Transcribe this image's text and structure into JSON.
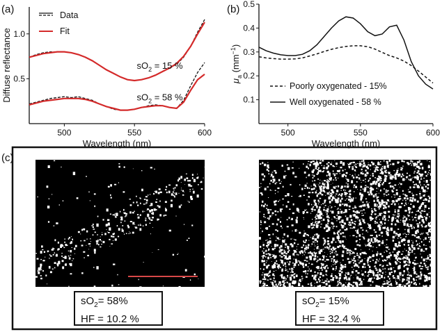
{
  "panels": {
    "a": "(a)",
    "b": "(b)",
    "c": "(c)"
  },
  "chart_data": [
    {
      "type": "line",
      "panel": "(a)",
      "xlabel": "Wavelength (nm)",
      "ylabel": "Diffuse reflectance",
      "xlim": [
        475,
        600
      ],
      "ylim": [
        0,
        1.3
      ],
      "xticks": [
        500,
        550,
        600
      ],
      "yticks": [
        0.5,
        1.0
      ],
      "ytick_labels": [
        "0.5",
        "1.0"
      ],
      "legend": [
        "Data",
        "Fit"
      ],
      "legend_position": "top-left",
      "annotations": [
        {
          "text": "sO",
          "sub": "2",
          "rest": " = 15 %",
          "at_x": 568,
          "at_y": 0.61
        },
        {
          "text": "sO",
          "sub": "2",
          "rest": " = 58 %",
          "at_x": 568,
          "at_y": 0.26
        }
      ],
      "colors": {
        "data": "#111111",
        "fit": "#d42a2a"
      },
      "series": [
        {
          "name": "Data",
          "style": "dashed",
          "x": [
            475,
            480,
            485,
            490,
            495,
            500,
            505,
            510,
            515,
            520,
            525,
            530,
            535,
            540,
            545,
            550,
            555,
            560,
            565,
            570,
            575,
            580,
            585,
            590,
            595,
            600
          ],
          "y": [
            0.74,
            0.77,
            0.79,
            0.8,
            0.8,
            0.8,
            0.79,
            0.77,
            0.74,
            0.7,
            0.65,
            0.6,
            0.56,
            0.52,
            0.49,
            0.48,
            0.49,
            0.51,
            0.54,
            0.58,
            0.62,
            0.66,
            0.74,
            0.86,
            1.02,
            1.16
          ]
        },
        {
          "name": "Fit",
          "style": "solid",
          "x": [
            475,
            480,
            485,
            490,
            495,
            500,
            505,
            510,
            515,
            520,
            525,
            530,
            535,
            540,
            545,
            550,
            555,
            560,
            565,
            570,
            575,
            580,
            585,
            590,
            595,
            600
          ],
          "y": [
            0.74,
            0.76,
            0.78,
            0.79,
            0.8,
            0.8,
            0.79,
            0.77,
            0.74,
            0.7,
            0.65,
            0.6,
            0.56,
            0.52,
            0.49,
            0.48,
            0.49,
            0.51,
            0.54,
            0.58,
            0.62,
            0.67,
            0.75,
            0.86,
            1.0,
            1.13
          ]
        },
        {
          "name": "Data",
          "style": "dashed",
          "x": [
            475,
            480,
            485,
            490,
            495,
            500,
            505,
            510,
            515,
            520,
            525,
            530,
            535,
            540,
            545,
            550,
            555,
            560,
            565,
            570,
            575,
            580,
            585,
            590,
            595,
            600
          ],
          "y": [
            0.22,
            0.24,
            0.26,
            0.28,
            0.29,
            0.3,
            0.29,
            0.3,
            0.28,
            0.26,
            0.22,
            0.19,
            0.16,
            0.15,
            0.15,
            0.16,
            0.18,
            0.2,
            0.21,
            0.2,
            0.18,
            0.17,
            0.26,
            0.42,
            0.57,
            0.68
          ]
        },
        {
          "name": "Fit",
          "style": "solid",
          "x": [
            475,
            480,
            485,
            490,
            495,
            500,
            505,
            510,
            515,
            520,
            525,
            530,
            535,
            540,
            545,
            550,
            555,
            560,
            565,
            570,
            575,
            580,
            585,
            590,
            595,
            600
          ],
          "y": [
            0.21,
            0.23,
            0.25,
            0.26,
            0.27,
            0.28,
            0.28,
            0.28,
            0.27,
            0.25,
            0.22,
            0.19,
            0.17,
            0.15,
            0.15,
            0.16,
            0.18,
            0.19,
            0.2,
            0.2,
            0.18,
            0.17,
            0.24,
            0.37,
            0.49,
            0.55
          ]
        }
      ]
    },
    {
      "type": "line",
      "panel": "(b)",
      "xlabel": "Wavelength (nm)",
      "ylabel": "μ",
      "ylabel_sub": "a",
      "ylabel_rest": " (mm",
      "ylabel_sup": "−1",
      "ylabel_end": ")",
      "xlim": [
        480,
        600
      ],
      "ylim": [
        0.0,
        0.5
      ],
      "xticks": [
        500,
        550,
        600
      ],
      "yticks": [
        0.1,
        0.2,
        0.3,
        0.4,
        0.5
      ],
      "legend_position": "bottom-left",
      "series": [
        {
          "name": "Poorly oxygenated - 15%",
          "style": "dashed",
          "x": [
            480,
            485,
            490,
            495,
            500,
            505,
            510,
            515,
            520,
            525,
            530,
            535,
            540,
            545,
            550,
            555,
            560,
            565,
            570,
            575,
            580,
            585,
            590,
            595,
            600
          ],
          "y": [
            0.28,
            0.275,
            0.272,
            0.27,
            0.27,
            0.271,
            0.275,
            0.283,
            0.292,
            0.302,
            0.311,
            0.318,
            0.323,
            0.326,
            0.326,
            0.322,
            0.312,
            0.298,
            0.285,
            0.275,
            0.262,
            0.243,
            0.22,
            0.195,
            0.17
          ]
        },
        {
          "name": "Well oxygenated - 58 %",
          "style": "solid",
          "x": [
            480,
            485,
            490,
            495,
            500,
            505,
            510,
            515,
            520,
            525,
            530,
            535,
            540,
            545,
            550,
            555,
            560,
            565,
            570,
            575,
            580,
            585,
            590,
            595,
            600
          ],
          "y": [
            0.32,
            0.305,
            0.295,
            0.288,
            0.285,
            0.285,
            0.29,
            0.305,
            0.33,
            0.365,
            0.4,
            0.43,
            0.447,
            0.442,
            0.418,
            0.385,
            0.368,
            0.375,
            0.405,
            0.412,
            0.35,
            0.26,
            0.2,
            0.165,
            0.145
          ]
        }
      ]
    }
  ],
  "images": [
    {
      "name": "sO2 58% binary image",
      "stat_line1_prefix": "sO",
      "stat_line1_sub": "2",
      "stat_line1_rest": "= 58%",
      "stat_line2": "HF = 10.2 %"
    },
    {
      "name": "sO2 15% binary image",
      "stat_line1_prefix": "sO",
      "stat_line1_sub": "2",
      "stat_line1_rest": "= 15%",
      "stat_line2": "HF = 32.4 %"
    }
  ],
  "colors": {
    "scale_bar": "#d84848",
    "image_bg": "#000000",
    "foreground": "#ffffff"
  }
}
